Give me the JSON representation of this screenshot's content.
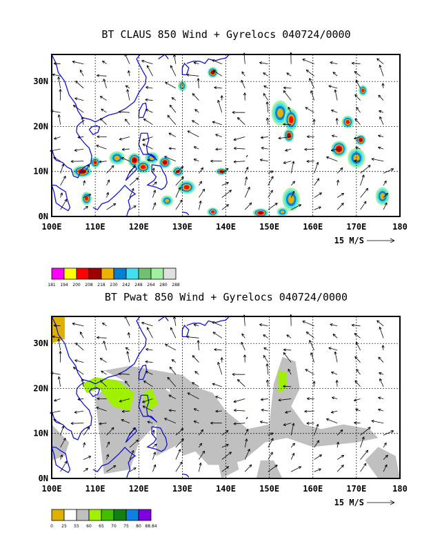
{
  "panels": [
    {
      "title": "BT CLAUS 850 Wind + Gyrelocs 040724/0000",
      "lat_labels": [
        "30N",
        "20N",
        "10N",
        "0N"
      ],
      "lon_labels": [
        "100E",
        "110E",
        "120E",
        "130E",
        "140E",
        "150E",
        "160E",
        "170E",
        "180"
      ],
      "ref_vector": "15 M/S",
      "colorbar_labels": [
        "181",
        "194",
        "200",
        "208",
        "218",
        "230",
        "242",
        "248",
        "264",
        "280",
        "288"
      ],
      "colorbar_colors": [
        "#ff00ff",
        "#ffff00",
        "#ff0000",
        "#a00000",
        "#f0b000",
        "#0080d0",
        "#40e0f0",
        "#70c070",
        "#a0f0a0",
        "#e0e0e0"
      ]
    },
    {
      "title": "BT Pwat 850 Wind + Gyrelocs 040724/0000",
      "lat_labels": [
        "30N",
        "20N",
        "10N",
        "0N"
      ],
      "lon_labels": [
        "100E",
        "110E",
        "120E",
        "130E",
        "140E",
        "150E",
        "160E",
        "170E",
        "180"
      ],
      "ref_vector": "15 M/S",
      "colorbar_labels": [
        "0",
        "25",
        "55",
        "60",
        "65",
        "70",
        "75",
        "80",
        "88.84"
      ],
      "colorbar_colors": [
        "#e0b000",
        "#ffffff",
        "#c0c0c0",
        "#a0f000",
        "#40c000",
        "#108010",
        "#1080e0",
        "#8000e0"
      ]
    }
  ],
  "map_extent": {
    "lon": [
      100,
      180
    ],
    "lat": [
      0,
      36
    ]
  }
}
